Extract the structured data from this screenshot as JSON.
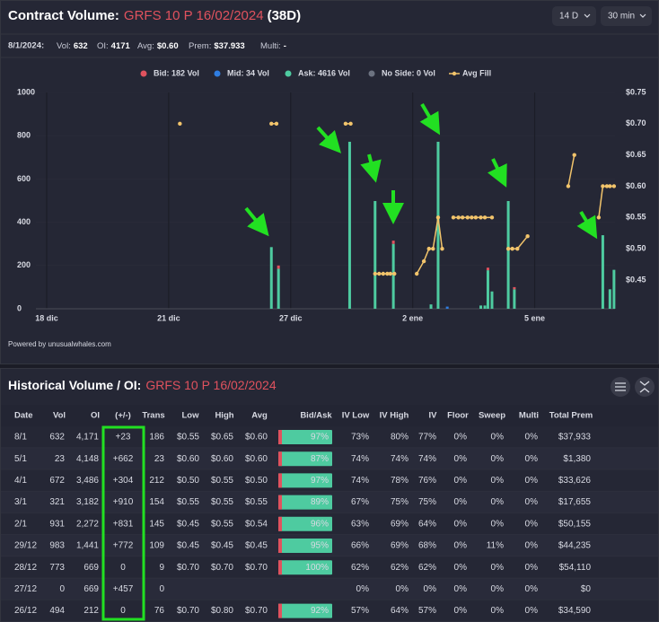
{
  "header": {
    "title_prefix": "Contract Volume:",
    "contract": "GRFS 10 P 16/02/2024",
    "dte": "(38D)",
    "range_button": "14 D",
    "interval_button": "30 min"
  },
  "summary": {
    "date": "8/1/2024:",
    "items": [
      {
        "label": "Vol:",
        "value": "632"
      },
      {
        "label": "OI:",
        "value": "4171"
      },
      {
        "label": "Avg:",
        "value": "$0.60"
      },
      {
        "label": "Prem:",
        "value": "$37.933"
      },
      {
        "label": "Multi:",
        "value": "-"
      }
    ]
  },
  "chart_data": {
    "type": "bar",
    "stacked": true,
    "grid": true,
    "x": [
      22.1,
      22.8,
      29.8,
      32.3,
      34.1,
      37.8,
      38.5,
      39.4,
      42.7,
      43.1,
      43.4,
      43.8,
      45.4,
      46.0,
      54.7,
      55.4,
      55.8
    ],
    "xlim": [
      -1.06,
      55.9
    ],
    "xticks": [
      {
        "value": 0,
        "label": "18 dic"
      },
      {
        "value": 12,
        "label": "21 dic"
      },
      {
        "value": 24,
        "label": "27 dic"
      },
      {
        "value": 36,
        "label": "2 ene"
      },
      {
        "value": 48,
        "label": "5 ene"
      }
    ],
    "ylim": [
      0,
      1000
    ],
    "yticks": [
      0,
      200,
      400,
      600,
      800,
      1000
    ],
    "y2lim": [
      0.404,
      0.75
    ],
    "y2ticks": [
      {
        "value": 0.45,
        "label": "$0.45"
      },
      {
        "value": 0.5,
        "label": "$0.50"
      },
      {
        "value": 0.55,
        "label": "$0.55"
      },
      {
        "value": 0.6,
        "label": "$0.60"
      },
      {
        "value": 0.65,
        "label": "$0.65"
      },
      {
        "value": 0.7,
        "label": "$0.70"
      },
      {
        "value": 0.75,
        "label": "$0.75"
      }
    ],
    "series": [
      {
        "name": "Bid: 182 Vol",
        "color": "#e0525e",
        "values": [
          0,
          15,
          0,
          0,
          15,
          0,
          0,
          0,
          0,
          0,
          12,
          0,
          0,
          10,
          0,
          0,
          0
        ]
      },
      {
        "name": "Mid: 34 Vol",
        "color": "#2f7de1",
        "values": [
          0,
          0,
          0,
          0,
          0,
          0,
          0,
          10,
          0,
          0,
          0,
          0,
          0,
          0,
          0,
          0,
          0
        ]
      },
      {
        "name": "Ask: 4616 Vol",
        "color": "#4ecba0",
        "values": [
          285,
          185,
          772,
          498,
          300,
          20,
          772,
          0,
          15,
          15,
          178,
          80,
          498,
          90,
          340,
          90,
          180
        ]
      },
      {
        "name": "No Side: 0 Vol",
        "color": "#6c7280",
        "values": [
          0,
          0,
          0,
          0,
          0,
          0,
          0,
          0,
          0,
          0,
          0,
          0,
          0,
          0,
          0,
          0,
          0
        ]
      },
      {
        "name": "Avg Fill",
        "color": "#f2c46b",
        "axis": "y2",
        "x": [
          13.1,
          22.1,
          22.6,
          29.4,
          29.9,
          32.3,
          32.7,
          33.1,
          33.5,
          33.8,
          34.2,
          36.4,
          37.1,
          37.6,
          38.0,
          38.5,
          38.9,
          40.0,
          40.5,
          40.9,
          41.4,
          41.8,
          42.2,
          42.7,
          43.1,
          43.8,
          45.4,
          45.8,
          46.3,
          47.3,
          51.3,
          51.9,
          54.3,
          54.7,
          55.1,
          55.4,
          55.8
        ],
        "values": [
          0.7,
          0.7,
          0.7,
          0.7,
          0.7,
          0.46,
          0.46,
          0.46,
          0.46,
          0.46,
          0.46,
          0.46,
          0.48,
          0.5,
          0.5,
          0.55,
          0.5,
          0.55,
          0.55,
          0.55,
          0.55,
          0.55,
          0.55,
          0.55,
          0.55,
          0.55,
          0.5,
          0.5,
          0.5,
          0.52,
          0.6,
          0.65,
          0.55,
          0.6,
          0.6,
          0.6,
          0.6
        ]
      }
    ]
  },
  "footer_credit": "Powered by unusualwhales.com",
  "table": {
    "title_prefix": "Historical Volume / OI:",
    "contract": "GRFS 10 P 16/02/2024",
    "columns": [
      "Date",
      "Vol",
      "OI",
      "(+/-)",
      "Trans",
      "Low",
      "High",
      "Avg",
      "Bid/Ask",
      "IV Low",
      "IV High",
      "IV",
      "Floor",
      "Sweep",
      "Multi",
      "Total Prem"
    ],
    "rows": [
      [
        "8/1",
        "632",
        "4,171",
        "+23",
        "186",
        "$0.55",
        "$0.65",
        "$0.60",
        "97%",
        "73%",
        "80%",
        "77%",
        "0%",
        "0%",
        "0%",
        "$37,933"
      ],
      [
        "5/1",
        "23",
        "4,148",
        "+662",
        "23",
        "$0.60",
        "$0.60",
        "$0.60",
        "87%",
        "74%",
        "74%",
        "74%",
        "0%",
        "0%",
        "0%",
        "$1,380"
      ],
      [
        "4/1",
        "672",
        "3,486",
        "+304",
        "212",
        "$0.50",
        "$0.55",
        "$0.50",
        "97%",
        "74%",
        "78%",
        "76%",
        "0%",
        "0%",
        "0%",
        "$33,626"
      ],
      [
        "3/1",
        "321",
        "3,182",
        "+910",
        "154",
        "$0.55",
        "$0.55",
        "$0.55",
        "89%",
        "67%",
        "75%",
        "75%",
        "0%",
        "0%",
        "0%",
        "$17,655"
      ],
      [
        "2/1",
        "931",
        "2,272",
        "+831",
        "145",
        "$0.45",
        "$0.55",
        "$0.54",
        "96%",
        "63%",
        "69%",
        "64%",
        "0%",
        "0%",
        "0%",
        "$50,155"
      ],
      [
        "29/12",
        "983",
        "1,441",
        "+772",
        "109",
        "$0.45",
        "$0.45",
        "$0.45",
        "95%",
        "66%",
        "69%",
        "68%",
        "0%",
        "11%",
        "0%",
        "$44,235"
      ],
      [
        "28/12",
        "773",
        "669",
        "0",
        "9",
        "$0.70",
        "$0.70",
        "$0.70",
        "100%",
        "62%",
        "62%",
        "62%",
        "0%",
        "0%",
        "0%",
        "$54,110"
      ],
      [
        "27/12",
        "0",
        "669",
        "+457",
        "0",
        null,
        null,
        null,
        null,
        "0%",
        "0%",
        "0%",
        "0%",
        "0%",
        "0%",
        "$0"
      ],
      [
        "26/12",
        "494",
        "212",
        "0",
        "76",
        "$0.70",
        "$0.80",
        "$0.70",
        "92%",
        "57%",
        "64%",
        "57%",
        "0%",
        "0%",
        "0%",
        "$34,590"
      ]
    ]
  }
}
